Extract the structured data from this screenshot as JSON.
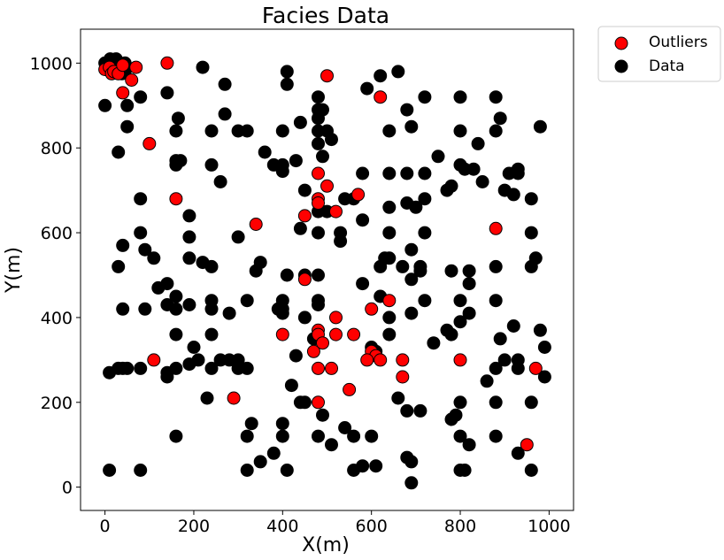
{
  "chart_data": {
    "type": "scatter",
    "title": "Facies Data",
    "xlabel": "X(m)",
    "ylabel": "Y(m)",
    "xlim": [
      -55,
      1055
    ],
    "ylim": [
      -55,
      1080
    ],
    "xticks": [
      0,
      200,
      400,
      600,
      800,
      1000
    ],
    "yticks": [
      0,
      200,
      400,
      600,
      800,
      1000
    ],
    "grid": false,
    "legend_position": "outside-top-right",
    "series": [
      {
        "name": "Data",
        "color": "#000000",
        "points": [
          [
            0,
            1000
          ],
          [
            5,
            1000
          ],
          [
            10,
            1000
          ],
          [
            12,
            1010
          ],
          [
            15,
            995
          ],
          [
            18,
            1005
          ],
          [
            20,
            985
          ],
          [
            22,
            1000
          ],
          [
            25,
            1010
          ],
          [
            28,
            990
          ],
          [
            30,
            995
          ],
          [
            35,
            985
          ],
          [
            38,
            975
          ],
          [
            40,
            990
          ],
          [
            45,
            1000
          ],
          [
            45,
            980
          ],
          [
            0,
            900
          ],
          [
            50,
            900
          ],
          [
            50,
            850
          ],
          [
            30,
            790
          ],
          [
            80,
            920
          ],
          [
            140,
            930
          ],
          [
            165,
            870
          ],
          [
            220,
            990
          ],
          [
            270,
            950
          ],
          [
            270,
            880
          ],
          [
            240,
            840
          ],
          [
            160,
            840
          ],
          [
            160,
            770
          ],
          [
            170,
            770
          ],
          [
            160,
            760
          ],
          [
            240,
            760
          ],
          [
            260,
            720
          ],
          [
            300,
            840
          ],
          [
            320,
            840
          ],
          [
            360,
            790
          ],
          [
            380,
            760
          ],
          [
            400,
            760
          ],
          [
            400,
            745
          ],
          [
            430,
            770
          ],
          [
            400,
            840
          ],
          [
            440,
            860
          ],
          [
            410,
            980
          ],
          [
            410,
            950
          ],
          [
            480,
            920
          ],
          [
            480,
            890
          ],
          [
            480,
            870
          ],
          [
            490,
            890
          ],
          [
            480,
            840
          ],
          [
            500,
            840
          ],
          [
            480,
            810
          ],
          [
            510,
            820
          ],
          [
            490,
            780
          ],
          [
            450,
            700
          ],
          [
            480,
            650
          ],
          [
            500,
            650
          ],
          [
            440,
            610
          ],
          [
            480,
            600
          ],
          [
            530,
            600
          ],
          [
            530,
            580
          ],
          [
            540,
            680
          ],
          [
            560,
            680
          ],
          [
            580,
            740
          ],
          [
            580,
            630
          ],
          [
            590,
            940
          ],
          [
            620,
            970
          ],
          [
            660,
            980
          ],
          [
            640,
            840
          ],
          [
            680,
            890
          ],
          [
            690,
            850
          ],
          [
            720,
            920
          ],
          [
            750,
            780
          ],
          [
            800,
            920
          ],
          [
            800,
            840
          ],
          [
            880,
            920
          ],
          [
            890,
            870
          ],
          [
            840,
            810
          ],
          [
            800,
            760
          ],
          [
            810,
            750
          ],
          [
            830,
            750
          ],
          [
            780,
            710
          ],
          [
            770,
            700
          ],
          [
            850,
            720
          ],
          [
            880,
            840
          ],
          [
            900,
            700
          ],
          [
            910,
            740
          ],
          [
            920,
            690
          ],
          [
            930,
            740
          ],
          [
            930,
            750
          ],
          [
            960,
            680
          ],
          [
            980,
            850
          ],
          [
            720,
            740
          ],
          [
            720,
            680
          ],
          [
            680,
            740
          ],
          [
            640,
            740
          ],
          [
            680,
            670
          ],
          [
            700,
            660
          ],
          [
            640,
            660
          ],
          [
            720,
            600
          ],
          [
            640,
            600
          ],
          [
            690,
            560
          ],
          [
            640,
            540
          ],
          [
            630,
            540
          ],
          [
            620,
            520
          ],
          [
            620,
            450
          ],
          [
            580,
            480
          ],
          [
            670,
            520
          ],
          [
            690,
            490
          ],
          [
            710,
            520
          ],
          [
            710,
            510
          ],
          [
            780,
            510
          ],
          [
            820,
            510
          ],
          [
            820,
            480
          ],
          [
            800,
            440
          ],
          [
            720,
            440
          ],
          [
            690,
            410
          ],
          [
            820,
            410
          ],
          [
            800,
            390
          ],
          [
            780,
            360
          ],
          [
            740,
            340
          ],
          [
            770,
            370
          ],
          [
            880,
            520
          ],
          [
            960,
            520
          ],
          [
            970,
            540
          ],
          [
            880,
            440
          ],
          [
            890,
            350
          ],
          [
            900,
            300
          ],
          [
            920,
            380
          ],
          [
            930,
            300
          ],
          [
            930,
            280
          ],
          [
            880,
            280
          ],
          [
            880,
            200
          ],
          [
            960,
            600
          ],
          [
            980,
            370
          ],
          [
            990,
            330
          ],
          [
            990,
            260
          ],
          [
            960,
            200
          ],
          [
            960,
            40
          ],
          [
            930,
            80
          ],
          [
            880,
            120
          ],
          [
            820,
            100
          ],
          [
            800,
            120
          ],
          [
            780,
            160
          ],
          [
            790,
            170
          ],
          [
            800,
            200
          ],
          [
            860,
            250
          ],
          [
            800,
            40
          ],
          [
            810,
            40
          ],
          [
            690,
            10
          ],
          [
            690,
            60
          ],
          [
            680,
            70
          ],
          [
            680,
            180
          ],
          [
            710,
            180
          ],
          [
            660,
            210
          ],
          [
            640,
            400
          ],
          [
            640,
            360
          ],
          [
            600,
            330
          ],
          [
            610,
            320
          ],
          [
            600,
            120
          ],
          [
            560,
            120
          ],
          [
            580,
            50
          ],
          [
            560,
            40
          ],
          [
            610,
            50
          ],
          [
            540,
            140
          ],
          [
            510,
            100
          ],
          [
            490,
            170
          ],
          [
            480,
            120
          ],
          [
            440,
            200
          ],
          [
            450,
            200
          ],
          [
            430,
            310
          ],
          [
            450,
            400
          ],
          [
            480,
            440
          ],
          [
            480,
            430
          ],
          [
            470,
            350
          ],
          [
            480,
            500
          ],
          [
            450,
            500
          ],
          [
            410,
            500
          ],
          [
            400,
            440
          ],
          [
            400,
            420
          ],
          [
            390,
            420
          ],
          [
            400,
            410
          ],
          [
            420,
            240
          ],
          [
            400,
            150
          ],
          [
            400,
            120
          ],
          [
            380,
            80
          ],
          [
            350,
            60
          ],
          [
            330,
            150
          ],
          [
            320,
            120
          ],
          [
            320,
            40
          ],
          [
            410,
            40
          ],
          [
            320,
            280
          ],
          [
            300,
            280
          ],
          [
            280,
            300
          ],
          [
            300,
            300
          ],
          [
            260,
            300
          ],
          [
            240,
            420
          ],
          [
            240,
            440
          ],
          [
            240,
            360
          ],
          [
            240,
            280
          ],
          [
            200,
            330
          ],
          [
            210,
            300
          ],
          [
            190,
            290
          ],
          [
            160,
            360
          ],
          [
            160,
            450
          ],
          [
            140,
            430
          ],
          [
            160,
            420
          ],
          [
            190,
            430
          ],
          [
            240,
            520
          ],
          [
            220,
            530
          ],
          [
            190,
            540
          ],
          [
            190,
            590
          ],
          [
            190,
            640
          ],
          [
            140,
            480
          ],
          [
            120,
            470
          ],
          [
            110,
            540
          ],
          [
            90,
            560
          ],
          [
            80,
            600
          ],
          [
            40,
            570
          ],
          [
            30,
            520
          ],
          [
            40,
            420
          ],
          [
            90,
            420
          ],
          [
            80,
            280
          ],
          [
            50,
            280
          ],
          [
            40,
            280
          ],
          [
            30,
            280
          ],
          [
            10,
            270
          ],
          [
            10,
            40
          ],
          [
            80,
            40
          ],
          [
            140,
            270
          ],
          [
            140,
            260
          ],
          [
            160,
            280
          ],
          [
            160,
            120
          ],
          [
            230,
            210
          ],
          [
            280,
            410
          ],
          [
            300,
            590
          ],
          [
            350,
            530
          ],
          [
            340,
            510
          ],
          [
            320,
            440
          ],
          [
            80,
            680
          ]
        ]
      },
      {
        "name": "Outliers",
        "color": "#ff0000",
        "points": [
          [
            0,
            985
          ],
          [
            10,
            990
          ],
          [
            15,
            975
          ],
          [
            20,
            980
          ],
          [
            30,
            975
          ],
          [
            40,
            995
          ],
          [
            60,
            960
          ],
          [
            70,
            990
          ],
          [
            40,
            930
          ],
          [
            100,
            810
          ],
          [
            140,
            1000
          ],
          [
            500,
            970
          ],
          [
            620,
            920
          ],
          [
            160,
            680
          ],
          [
            340,
            620
          ],
          [
            450,
            640
          ],
          [
            480,
            740
          ],
          [
            480,
            680
          ],
          [
            480,
            670
          ],
          [
            500,
            710
          ],
          [
            520,
            650
          ],
          [
            570,
            690
          ],
          [
            880,
            610
          ],
          [
            600,
            420
          ],
          [
            640,
            440
          ],
          [
            450,
            490
          ],
          [
            400,
            360
          ],
          [
            470,
            320
          ],
          [
            480,
            370
          ],
          [
            480,
            360
          ],
          [
            490,
            340
          ],
          [
            520,
            400
          ],
          [
            520,
            360
          ],
          [
            560,
            360
          ],
          [
            600,
            320
          ],
          [
            610,
            310
          ],
          [
            590,
            300
          ],
          [
            620,
            300
          ],
          [
            670,
            300
          ],
          [
            670,
            260
          ],
          [
            800,
            300
          ],
          [
            480,
            280
          ],
          [
            510,
            280
          ],
          [
            550,
            230
          ],
          [
            480,
            200
          ],
          [
            110,
            300
          ],
          [
            290,
            210
          ],
          [
            950,
            100
          ],
          [
            970,
            280
          ]
        ]
      }
    ]
  }
}
